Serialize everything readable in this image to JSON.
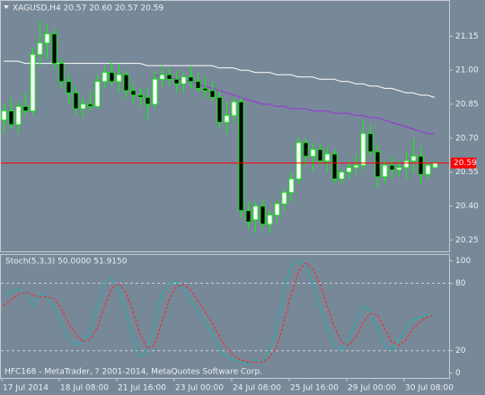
{
  "chart_data": [
    {
      "type": "candlestick",
      "title": "XAGUSD,H4 20.57 20.60 20.57 20.59",
      "ylim": [
        20.2,
        21.31
      ],
      "yticks": [
        21.15,
        {
          "value": 21.0,
          "label": "21.00"
        },
        20.85,
        {
          "value": 20.7,
          "label": "20.70"
        },
        20.55,
        {
          "value": 20.4,
          "label": "20.40"
        },
        20.25
      ],
      "xticks": [
        {
          "value": 0,
          "label": "17 Jul 2014"
        },
        {
          "value": 8,
          "label": "18 Jul 08:00"
        },
        {
          "value": 16,
          "label": "21 Jul 16:00"
        },
        {
          "value": 24,
          "label": "23 Jul 00:00"
        },
        {
          "value": 32,
          "label": "24 Jul 08:00"
        },
        {
          "value": 40,
          "label": "25 Jul 16:00"
        },
        {
          "value": 48,
          "label": "29 Jul 00:00"
        },
        {
          "value": 56,
          "label": "30 Jul 08:00"
        }
      ],
      "up_color": "#ffffff",
      "down_color": "#000000",
      "wick_color": "#00ff00",
      "open": [
        20.78,
        20.82,
        20.76,
        20.84,
        20.82,
        21.07,
        21.12,
        21.16,
        21.03,
        20.95,
        20.9,
        20.83,
        20.85,
        20.84,
        20.95,
        20.99,
        20.95,
        20.98,
        20.91,
        20.89,
        20.88,
        20.85,
        20.96,
        20.98,
        20.96,
        20.94,
        20.97,
        20.95,
        20.92,
        20.91,
        20.88,
        20.77,
        20.8,
        20.86,
        20.38,
        20.34,
        20.4,
        20.32,
        20.36,
        20.41,
        20.46,
        20.52,
        20.68,
        20.62,
        20.65,
        20.6,
        20.63,
        20.52,
        20.55,
        20.57,
        20.58,
        20.72,
        20.64,
        20.53,
        20.58,
        20.56,
        20.57,
        20.6,
        20.62,
        20.54,
        20.57
      ],
      "high": [
        20.85,
        20.88,
        20.86,
        20.9,
        21.1,
        21.22,
        21.2,
        21.18,
        21.05,
        20.98,
        20.93,
        20.88,
        20.9,
        20.98,
        21.02,
        21.04,
        21.02,
        21.0,
        20.94,
        20.92,
        20.92,
        21.0,
        21.02,
        21.01,
        21.0,
        20.99,
        21.02,
        20.99,
        20.97,
        20.95,
        20.91,
        20.86,
        20.88,
        20.88,
        20.42,
        20.42,
        20.43,
        20.38,
        20.42,
        20.48,
        20.55,
        20.7,
        20.7,
        20.68,
        20.68,
        20.66,
        20.65,
        20.56,
        20.6,
        20.63,
        20.78,
        20.76,
        20.67,
        20.6,
        20.62,
        20.6,
        20.64,
        20.7,
        20.66,
        20.6,
        20.6
      ],
      "low": [
        20.72,
        20.74,
        20.72,
        20.8,
        20.8,
        21.02,
        21.05,
        21.0,
        20.92,
        20.85,
        20.8,
        20.79,
        20.82,
        20.83,
        20.92,
        20.93,
        20.9,
        20.88,
        20.86,
        20.84,
        20.78,
        20.83,
        20.93,
        20.93,
        20.9,
        20.9,
        20.92,
        20.9,
        20.88,
        20.86,
        20.74,
        20.72,
        20.77,
        20.35,
        20.3,
        20.28,
        20.3,
        20.28,
        20.33,
        20.38,
        20.42,
        20.5,
        20.58,
        20.55,
        20.58,
        20.55,
        20.5,
        20.5,
        20.52,
        20.54,
        20.56,
        20.62,
        20.48,
        20.5,
        20.52,
        20.53,
        20.52,
        20.55,
        20.5,
        20.52,
        20.57
      ],
      "close": [
        20.82,
        20.76,
        20.84,
        20.82,
        21.07,
        21.12,
        21.16,
        21.03,
        20.95,
        20.9,
        20.83,
        20.85,
        20.84,
        20.95,
        20.99,
        20.95,
        20.98,
        20.91,
        20.89,
        20.88,
        20.85,
        20.96,
        20.98,
        20.96,
        20.94,
        20.97,
        20.95,
        20.92,
        20.91,
        20.88,
        20.77,
        20.8,
        20.86,
        20.38,
        20.33,
        20.4,
        20.32,
        20.36,
        20.41,
        20.46,
        20.52,
        20.68,
        20.62,
        20.65,
        20.6,
        20.63,
        20.52,
        20.55,
        20.57,
        20.58,
        20.72,
        20.64,
        20.53,
        20.58,
        20.56,
        20.57,
        20.6,
        20.62,
        20.54,
        20.58,
        20.59
      ],
      "series": [
        {
          "color": "#ffffff",
          "values": [
            21.04,
            21.04,
            21.04,
            21.03,
            21.03,
            21.03,
            21.03,
            21.03,
            21.03,
            21.03,
            21.03,
            21.03,
            21.03,
            21.03,
            21.03,
            21.03,
            21.03,
            21.03,
            21.03,
            21.03,
            21.02,
            21.02,
            21.02,
            21.02,
            21.02,
            21.02,
            21.02,
            21.02,
            21.02,
            21.02,
            21.01,
            21.01,
            21.01,
            21.0,
            21.0,
            20.99,
            20.99,
            20.99,
            20.98,
            20.98,
            20.98,
            20.97,
            20.97,
            20.97,
            20.96,
            20.96,
            20.96,
            20.95,
            20.95,
            20.94,
            20.94,
            20.93,
            20.93,
            20.92,
            20.92,
            20.91,
            20.9,
            20.9,
            20.89,
            20.89,
            20.88
          ]
        },
        {
          "color": "#9b30d9",
          "values": [
            null,
            null,
            null,
            null,
            null,
            null,
            null,
            null,
            null,
            null,
            null,
            null,
            null,
            null,
            null,
            null,
            null,
            null,
            null,
            null,
            null,
            20.98,
            20.97,
            20.97,
            20.96,
            20.96,
            20.95,
            20.94,
            20.93,
            20.92,
            20.91,
            20.9,
            20.89,
            20.88,
            20.87,
            20.86,
            20.85,
            20.85,
            20.84,
            20.84,
            20.83,
            20.83,
            20.83,
            20.82,
            20.82,
            20.82,
            20.81,
            20.81,
            20.81,
            20.8,
            20.8,
            20.79,
            20.79,
            20.78,
            20.77,
            20.76,
            20.75,
            20.74,
            20.73,
            20.72,
            20.72
          ]
        }
      ],
      "current_price": 20.59,
      "current_price_color": "#ff0000"
    },
    {
      "type": "line",
      "title": "Stoch(5,3,3) 50.0000 51.9150",
      "annotation": "HFC168 - MetaTrader, ? 2001-2014, MetaQuotes Software Corp.",
      "ylim": [
        -5,
        106
      ],
      "yticks": [
        0,
        20,
        80,
        100
      ],
      "levels": [
        20,
        80
      ],
      "series": [
        {
          "color": "#20b2aa",
          "dash": false,
          "values": [
            70,
            72,
            75,
            72,
            60,
            70,
            68,
            60,
            45,
            30,
            25,
            28,
            35,
            60,
            80,
            85,
            75,
            55,
            30,
            15,
            20,
            45,
            70,
            80,
            82,
            75,
            65,
            55,
            45,
            35,
            20,
            15,
            12,
            10,
            8,
            12,
            10,
            20,
            40,
            75,
            95,
            100,
            98,
            80,
            60,
            40,
            25,
            20,
            30,
            45,
            60,
            55,
            40,
            25,
            20,
            30,
            40,
            48,
            50,
            52,
            50
          ]
        },
        {
          "color": "#ff2020",
          "dash": true,
          "values": [
            60,
            65,
            70,
            72,
            70,
            68,
            68,
            66,
            58,
            45,
            35,
            28,
            30,
            40,
            58,
            75,
            80,
            72,
            55,
            35,
            22,
            25,
            45,
            65,
            77,
            79,
            74,
            65,
            55,
            45,
            33,
            23,
            16,
            12,
            10,
            10,
            10,
            14,
            23,
            45,
            70,
            90,
            98,
            93,
            80,
            60,
            42,
            28,
            25,
            32,
            45,
            53,
            52,
            40,
            28,
            25,
            30,
            40,
            46,
            50,
            51.915
          ]
        }
      ]
    }
  ]
}
